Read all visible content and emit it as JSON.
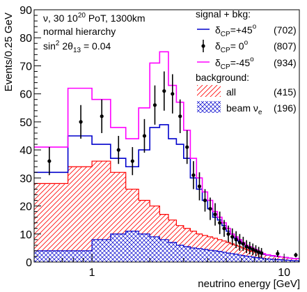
{
  "chart_data": {
    "type": "histogram",
    "x_scale": "log",
    "xlim": [
      0.5,
      12
    ],
    "ylim": [
      0,
      90
    ],
    "xlabel": "neutrino energy [GeV]",
    "ylabel": "Events/0.25 GeV",
    "x_tick_labels": [
      {
        "value": 1,
        "label": "1"
      },
      {
        "value": 10,
        "label": "10"
      }
    ],
    "y_ticks": [
      0,
      10,
      20,
      30,
      40,
      50,
      60,
      70,
      80,
      90
    ],
    "grid": false,
    "annotations": {
      "line1": {
        "nu": "ν,",
        "main": " 30 10",
        "sup": "20",
        "tail": " PoT, 1300km"
      },
      "line2": "normal hierarchy",
      "line3": {
        "pre": "sin",
        "sup": "2",
        "mid": " 2θ",
        "sub": "13",
        "post": " = 0.04"
      }
    },
    "legend": {
      "placement": "top-right",
      "header_signal": "signal + bkg:",
      "header_background": "background:",
      "entries": [
        {
          "delta": "δ",
          "sub": "CP",
          "eq": "=+45",
          "sup": "o",
          "count": "(702)",
          "color": "#0000cc",
          "style": "line"
        },
        {
          "delta": "δ",
          "sub": "CP",
          "eq": "= 0",
          "sup": "o",
          "count": "(807)",
          "color": "#000000",
          "style": "points"
        },
        {
          "delta": "δ",
          "sub": "CP",
          "eq": "=-45",
          "sup": "o",
          "count": "(934)",
          "color": "#ff00ff",
          "style": "line"
        },
        {
          "label": "all",
          "count": "(415)",
          "color": "#ff0000",
          "style": "hatch-red"
        },
        {
          "label": "beam ν",
          "sub": "e",
          "count": "(196)",
          "color": "#0000cc",
          "style": "hatch-blue"
        }
      ]
    },
    "bin_edges": [
      0.5,
      0.75,
      1.0,
      1.25,
      1.5,
      1.75,
      2.0,
      2.25,
      2.5,
      2.75,
      3.0,
      3.25,
      3.5,
      3.75,
      4.0,
      4.25,
      4.5,
      4.75,
      5.0,
      5.25,
      5.5,
      5.75,
      6.0,
      6.25,
      6.5,
      6.75,
      7.0,
      7.25,
      7.5,
      7.75,
      8.0,
      8.5,
      9.0,
      9.5,
      10.0,
      10.5,
      11.0,
      12.0
    ],
    "series": [
      {
        "key": "neg45",
        "color": "#ff00ff",
        "values": [
          41,
          62,
          58,
          48,
          44,
          55,
          71,
          75,
          63,
          57,
          47,
          37,
          30,
          25,
          22,
          18,
          16,
          14,
          12,
          10,
          9,
          8,
          7,
          6,
          5.5,
          5,
          4.5,
          4,
          3.5,
          3,
          2.6,
          2.3,
          2,
          1.8,
          1.6,
          1.4,
          1.2
        ]
      },
      {
        "key": "pos45",
        "color": "#0000cc",
        "values": [
          32,
          45,
          42,
          37,
          34,
          40,
          48,
          49,
          44,
          42,
          37,
          30,
          26,
          22,
          19,
          16,
          15,
          13,
          11,
          10,
          8.5,
          7.5,
          6.5,
          5.5,
          5,
          4.5,
          4,
          3.5,
          3,
          2.8,
          2.5,
          2.2,
          2,
          1.8,
          1.6,
          1.4,
          1.2
        ]
      },
      {
        "key": "bkg_all",
        "color": "#ff0000",
        "values": [
          28,
          34,
          36,
          32,
          26,
          22,
          20,
          17,
          15,
          13,
          12,
          11,
          10,
          9.5,
          9,
          8.5,
          8,
          7.5,
          7,
          6.5,
          6,
          5.5,
          5,
          4.5,
          4,
          3.8,
          3.5,
          3.2,
          3,
          2.7,
          2.5,
          2.2,
          2,
          1.8,
          1.6,
          1.4,
          1.2
        ]
      },
      {
        "key": "bkg_beam_nue",
        "color": "#0000cc",
        "values": [
          4,
          4,
          8,
          10,
          11,
          10,
          9,
          8,
          7,
          6,
          5.5,
          5,
          4.8,
          4.5,
          4.2,
          4,
          3.8,
          3.5,
          3.2,
          3,
          2.8,
          2.5,
          2.3,
          2.1,
          2,
          1.8,
          1.6,
          1.5,
          1.4,
          1.2,
          1.1,
          1,
          0.9,
          0.8,
          0.7,
          0.6,
          0.5
        ]
      }
    ],
    "points": [
      {
        "x": 0.6,
        "y": 36,
        "err": 5
      },
      {
        "x": 0.875,
        "y": 50,
        "err": 6
      },
      {
        "x": 1.125,
        "y": 52,
        "err": 6
      },
      {
        "x": 1.375,
        "y": 40,
        "err": 5
      },
      {
        "x": 1.625,
        "y": 36,
        "err": 5
      },
      {
        "x": 1.875,
        "y": 45,
        "err": 6
      },
      {
        "x": 2.125,
        "y": 56,
        "err": 7
      },
      {
        "x": 2.375,
        "y": 61,
        "err": 7
      },
      {
        "x": 2.625,
        "y": 60,
        "err": 7
      },
      {
        "x": 2.875,
        "y": 52,
        "err": 6
      },
      {
        "x": 3.125,
        "y": 41,
        "err": 6
      },
      {
        "x": 3.375,
        "y": 31,
        "err": 5
      },
      {
        "x": 3.625,
        "y": 27,
        "err": 5
      },
      {
        "x": 3.875,
        "y": 22,
        "err": 4
      },
      {
        "x": 4.125,
        "y": 19,
        "err": 4
      },
      {
        "x": 4.375,
        "y": 17,
        "err": 4
      },
      {
        "x": 4.625,
        "y": 14,
        "err": 4
      },
      {
        "x": 4.875,
        "y": 12,
        "err": 3
      },
      {
        "x": 5.125,
        "y": 10,
        "err": 3
      },
      {
        "x": 5.375,
        "y": 9,
        "err": 3
      },
      {
        "x": 5.625,
        "y": 8,
        "err": 3
      },
      {
        "x": 5.875,
        "y": 7,
        "err": 3
      },
      {
        "x": 6.125,
        "y": 6.5,
        "err": 2.5
      },
      {
        "x": 6.375,
        "y": 5.5,
        "err": 2.3
      },
      {
        "x": 6.625,
        "y": 5,
        "err": 2.2
      },
      {
        "x": 6.875,
        "y": 4.5,
        "err": 2.1
      },
      {
        "x": 7.125,
        "y": 4,
        "err": 2
      },
      {
        "x": 7.375,
        "y": 3.5,
        "err": 1.9
      },
      {
        "x": 7.625,
        "y": 3.2,
        "err": 1.8
      },
      {
        "x": 9.25,
        "y": 3,
        "err": 1.2
      },
      {
        "x": 11.5,
        "y": 2.5,
        "err": 0.8
      }
    ]
  }
}
